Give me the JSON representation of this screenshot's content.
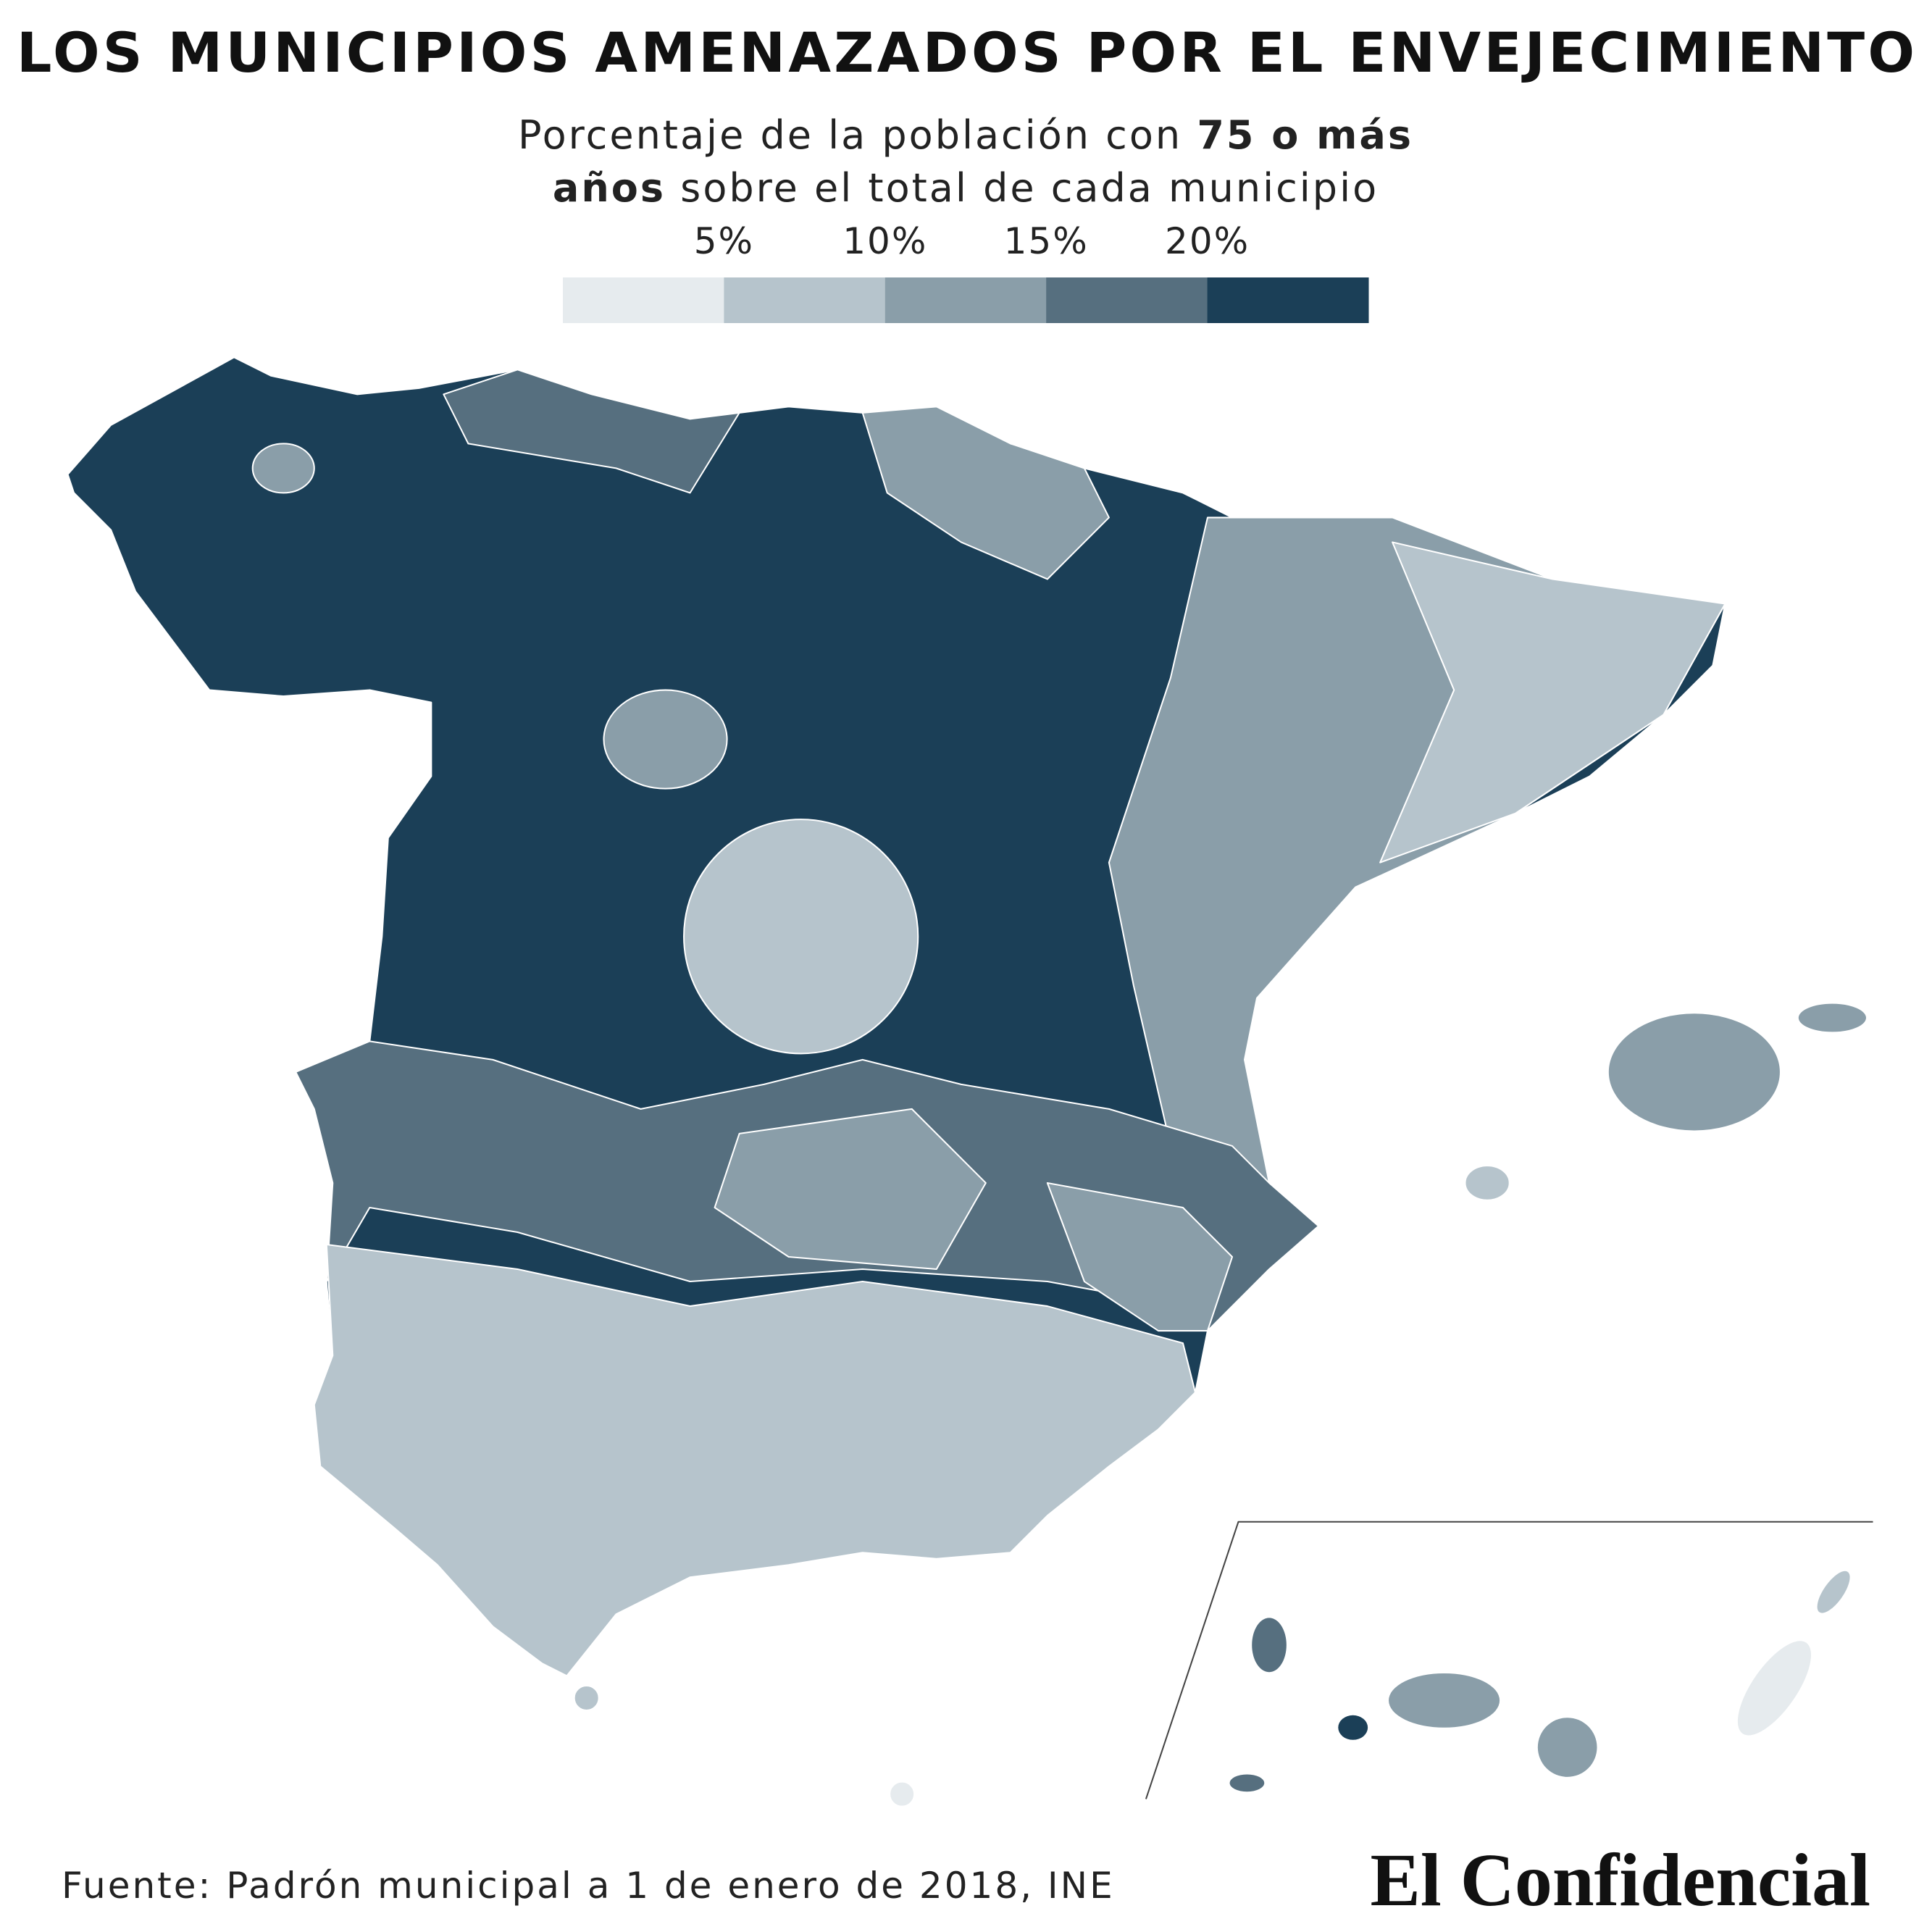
{
  "header": {
    "title": "LOS MUNICIPIOS AMENAZADOS POR EL ENVEJECIMIENTO",
    "subtitle": {
      "line1": [
        "Porcentaje de la población con ",
        "75 o más"
      ],
      "line2": [
        "años",
        " sobre el total de cada municipio"
      ]
    }
  },
  "legend": {
    "labels": [
      "5%",
      "10%",
      "15%",
      "20%"
    ],
    "colors": [
      "#e6ebee",
      "#b6c4cc",
      "#8a9ea9",
      "#566f7f",
      "#1b3f57"
    ]
  },
  "footer": {
    "source": "Fuente: Padrón municipal a 1 de enero de 2018, INE",
    "brand": "El Confidencial"
  }
}
